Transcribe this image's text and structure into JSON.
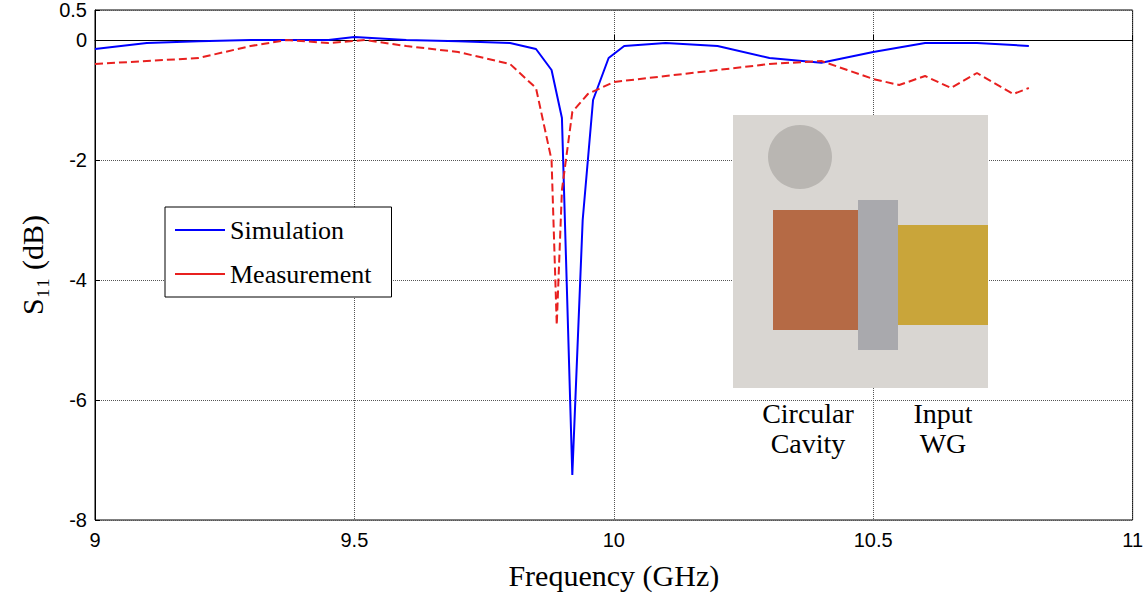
{
  "chart_data": {
    "type": "line",
    "x_label": "Frequency (GHz)",
    "y_label": "S₁₁ (dB)",
    "xlim": [
      9,
      11
    ],
    "xticks": [
      9,
      9.5,
      10,
      10.5,
      11
    ],
    "ylim": [
      -8,
      0.5
    ],
    "yticks": [
      -8,
      -6,
      -4,
      -2,
      0
    ],
    "grid": true,
    "legend": "left",
    "annotations": [
      "Circular Cavity",
      "Input WG"
    ],
    "series": [
      {
        "name": "Simulation",
        "color": "#0000ff",
        "line_style": "solid",
        "x": [
          9,
          9.1,
          9.2,
          9.3,
          9.45,
          9.5,
          9.6,
          9.7,
          9.8,
          9.85,
          9.88,
          9.9,
          9.92,
          9.94,
          9.96,
          9.99,
          10.02,
          10.1,
          10.2,
          10.3,
          10.4,
          10.5,
          10.6,
          10.7,
          10.8
        ],
        "values": [
          -0.15,
          -0.05,
          -0.02,
          0,
          0,
          0.05,
          0,
          -0.02,
          -0.05,
          -0.15,
          -0.5,
          -1.3,
          -7.25,
          -3,
          -1,
          -0.3,
          -0.1,
          -0.05,
          -0.1,
          -0.3,
          -0.38,
          -0.2,
          -0.05,
          -0.05,
          -0.1
        ]
      },
      {
        "name": "Measurement",
        "color": "#e8201f",
        "line_style": "dashed",
        "x": [
          9,
          9.1,
          9.2,
          9.3,
          9.37,
          9.45,
          9.52,
          9.6,
          9.7,
          9.8,
          9.85,
          9.88,
          9.89,
          9.9,
          9.92,
          9.95,
          10,
          10.1,
          10.2,
          10.3,
          10.4,
          10.45,
          10.5,
          10.55,
          10.6,
          10.65,
          10.7,
          10.77,
          10.8
        ],
        "values": [
          -0.4,
          -0.35,
          -0.3,
          -0.1,
          0,
          -0.05,
          0,
          -0.1,
          -0.2,
          -0.4,
          -0.8,
          -2,
          -4.75,
          -2.5,
          -1.2,
          -0.9,
          -0.7,
          -0.6,
          -0.5,
          -0.4,
          -0.35,
          -0.5,
          -0.65,
          -0.75,
          -0.6,
          -0.8,
          -0.55,
          -0.9,
          -0.8
        ]
      }
    ]
  }
}
